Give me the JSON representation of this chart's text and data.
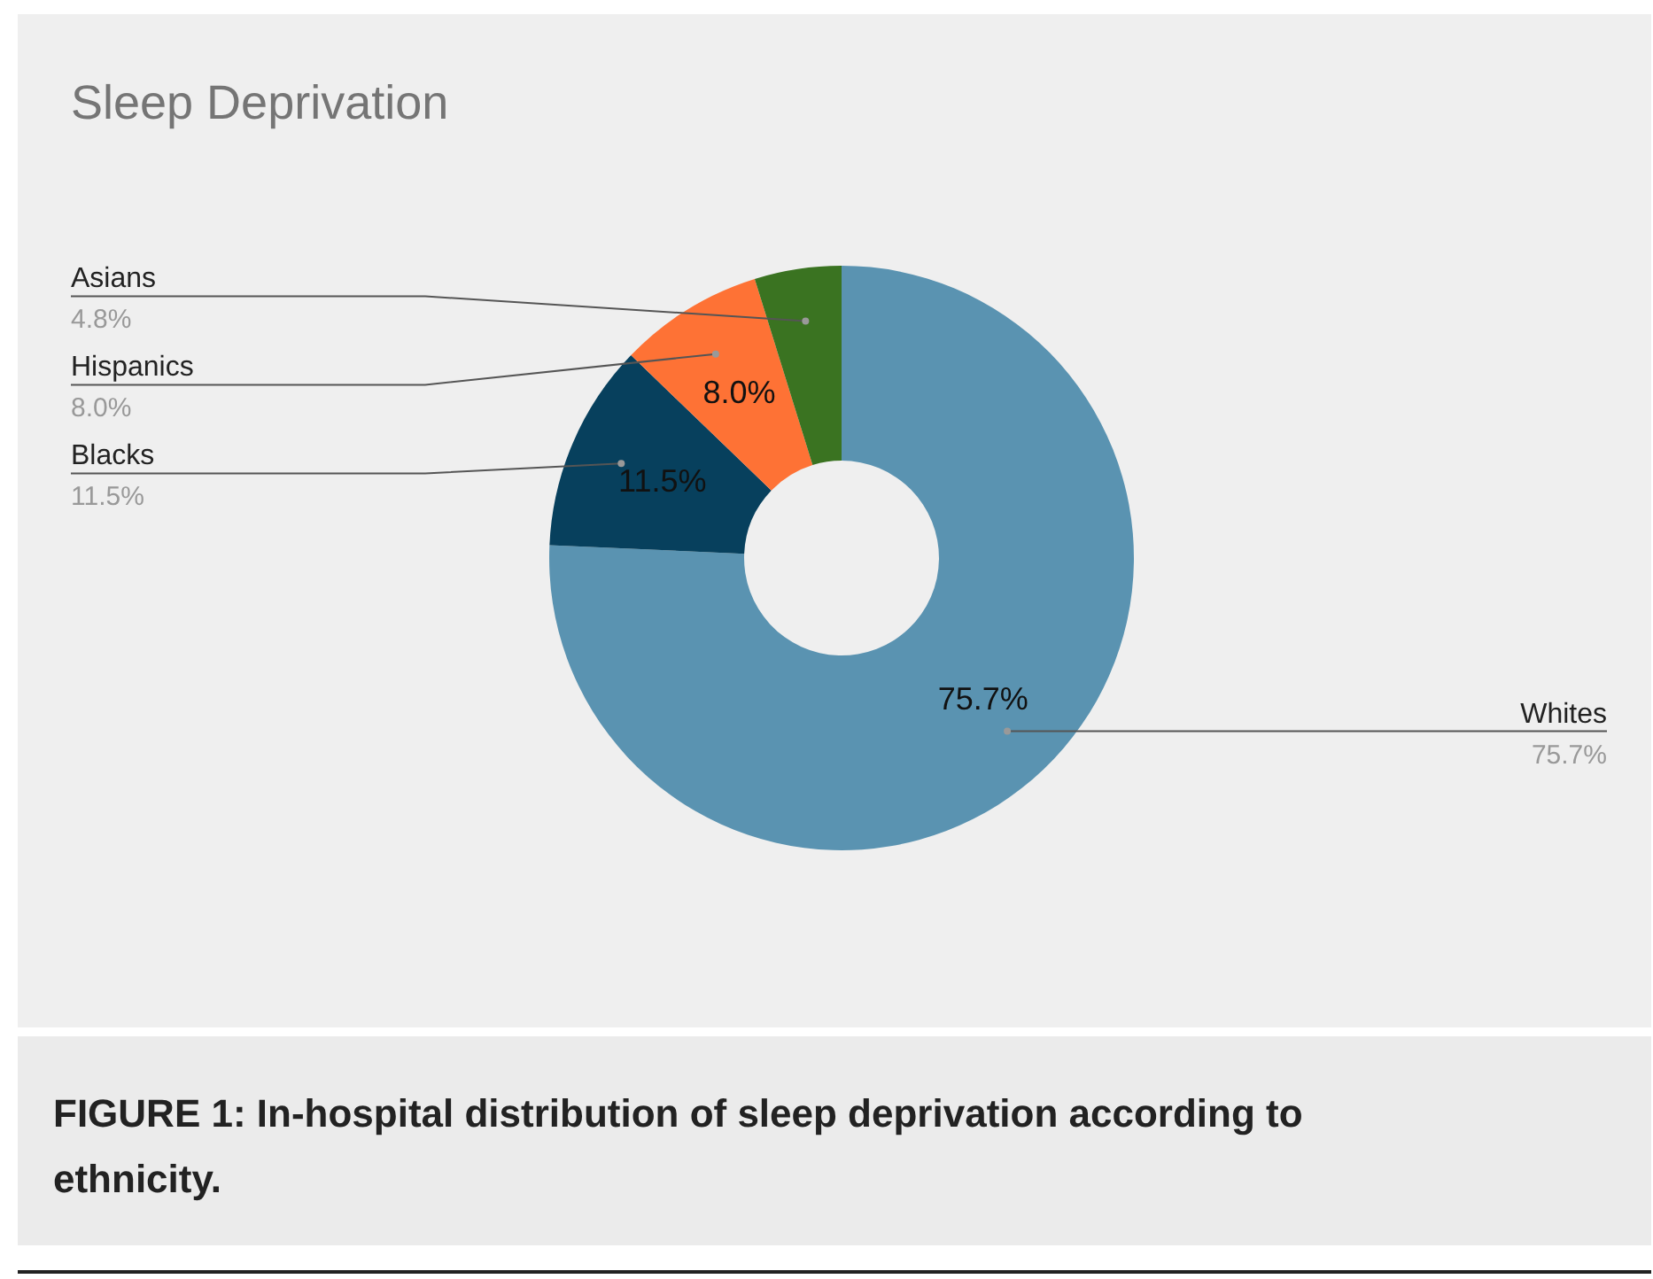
{
  "chart_data": {
    "type": "donut",
    "title": "Sleep Deprivation",
    "categories": [
      "Whites",
      "Blacks",
      "Hispanics",
      "Asians"
    ],
    "values": [
      75.7,
      11.5,
      8.0,
      4.8
    ],
    "colors": [
      "#5a93b1",
      "#07405d",
      "#fe7235",
      "#3a7321"
    ],
    "value_labels": [
      "75.7%",
      "11.5%",
      "8.0%",
      "4.8%"
    ],
    "annotations": [
      "FIGURE 1: In-hospital distribution of sleep deprivation according to ethnicity."
    ]
  }
}
